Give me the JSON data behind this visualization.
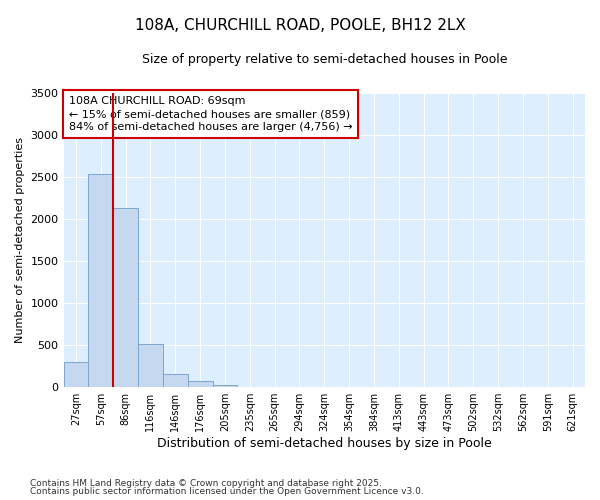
{
  "title_line1": "108A, CHURCHILL ROAD, POOLE, BH12 2LX",
  "title_line2": "Size of property relative to semi-detached houses in Poole",
  "xlabel": "Distribution of semi-detached houses by size in Poole",
  "ylabel": "Number of semi-detached properties",
  "categories": [
    "27sqm",
    "57sqm",
    "86sqm",
    "116sqm",
    "146sqm",
    "176sqm",
    "205sqm",
    "235sqm",
    "265sqm",
    "294sqm",
    "324sqm",
    "354sqm",
    "384sqm",
    "413sqm",
    "443sqm",
    "473sqm",
    "502sqm",
    "532sqm",
    "562sqm",
    "591sqm",
    "621sqm"
  ],
  "values": [
    295,
    2540,
    2130,
    520,
    155,
    75,
    30,
    0,
    0,
    0,
    0,
    0,
    0,
    0,
    0,
    0,
    0,
    0,
    0,
    0,
    0
  ],
  "bar_color": "#c5d8f0",
  "bar_edge_color": "#7ba7d0",
  "vline_color": "#cc0000",
  "annotation_title": "108A CHURCHILL ROAD: 69sqm",
  "annotation_line2": "← 15% of semi-detached houses are smaller (859)",
  "annotation_line3": "84% of semi-detached houses are larger (4,756) →",
  "annotation_box_facecolor": "white",
  "annotation_box_edgecolor": "#cc0000",
  "ylim": [
    0,
    3500
  ],
  "yticks": [
    0,
    500,
    1000,
    1500,
    2000,
    2500,
    3000,
    3500
  ],
  "footnote1": "Contains HM Land Registry data © Crown copyright and database right 2025.",
  "footnote2": "Contains public sector information licensed under the Open Government Licence v3.0.",
  "plot_bg_color": "#ddeeff",
  "fig_bg_color": "#ffffff",
  "grid_color": "#ffffff",
  "title_fontsize": 11,
  "subtitle_fontsize": 9,
  "xlabel_fontsize": 9,
  "ylabel_fontsize": 8,
  "xtick_fontsize": 7,
  "ytick_fontsize": 8,
  "annot_fontsize": 8,
  "footnote_fontsize": 6.5
}
